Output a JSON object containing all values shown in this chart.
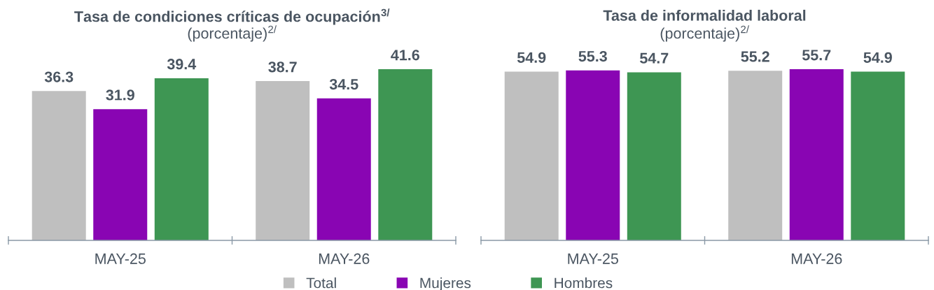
{
  "chart_data": [
    {
      "type": "bar",
      "title": "Tasa de condiciones críticas de ocupación$^{3/}$",
      "subtitle": "(porcentaje)$^{2/}$",
      "categories": [
        "MAY-25",
        "MAY-26"
      ],
      "series": [
        {
          "name": "Total",
          "color": "#bfbfbf",
          "values": [
            36.3,
            38.7
          ]
        },
        {
          "name": "Mujeres",
          "color": "#8905b3",
          "values": [
            31.9,
            34.5
          ]
        },
        {
          "name": "Hombres",
          "color": "#3e9653",
          "values": [
            39.4,
            41.6
          ]
        }
      ],
      "data_labels": true,
      "tick_labels": "x",
      "legend": "bottom"
    },
    {
      "type": "bar",
      "title": "Tasa de informalidad laboral",
      "subtitle": "(porcentaje)$^{2/}$",
      "categories": [
        "MAY-25",
        "MAY-26"
      ],
      "series": [
        {
          "name": "Total",
          "color": "#bfbfbf",
          "values": [
            54.9,
            55.2
          ]
        },
        {
          "name": "Mujeres",
          "color": "#8905b3",
          "values": [
            55.3,
            55.7
          ]
        },
        {
          "name": "Hombres",
          "color": "#3e9653",
          "values": [
            54.7,
            54.9
          ]
        }
      ],
      "data_labels": true,
      "tick_labels": "x",
      "legend": "bottom"
    }
  ]
}
